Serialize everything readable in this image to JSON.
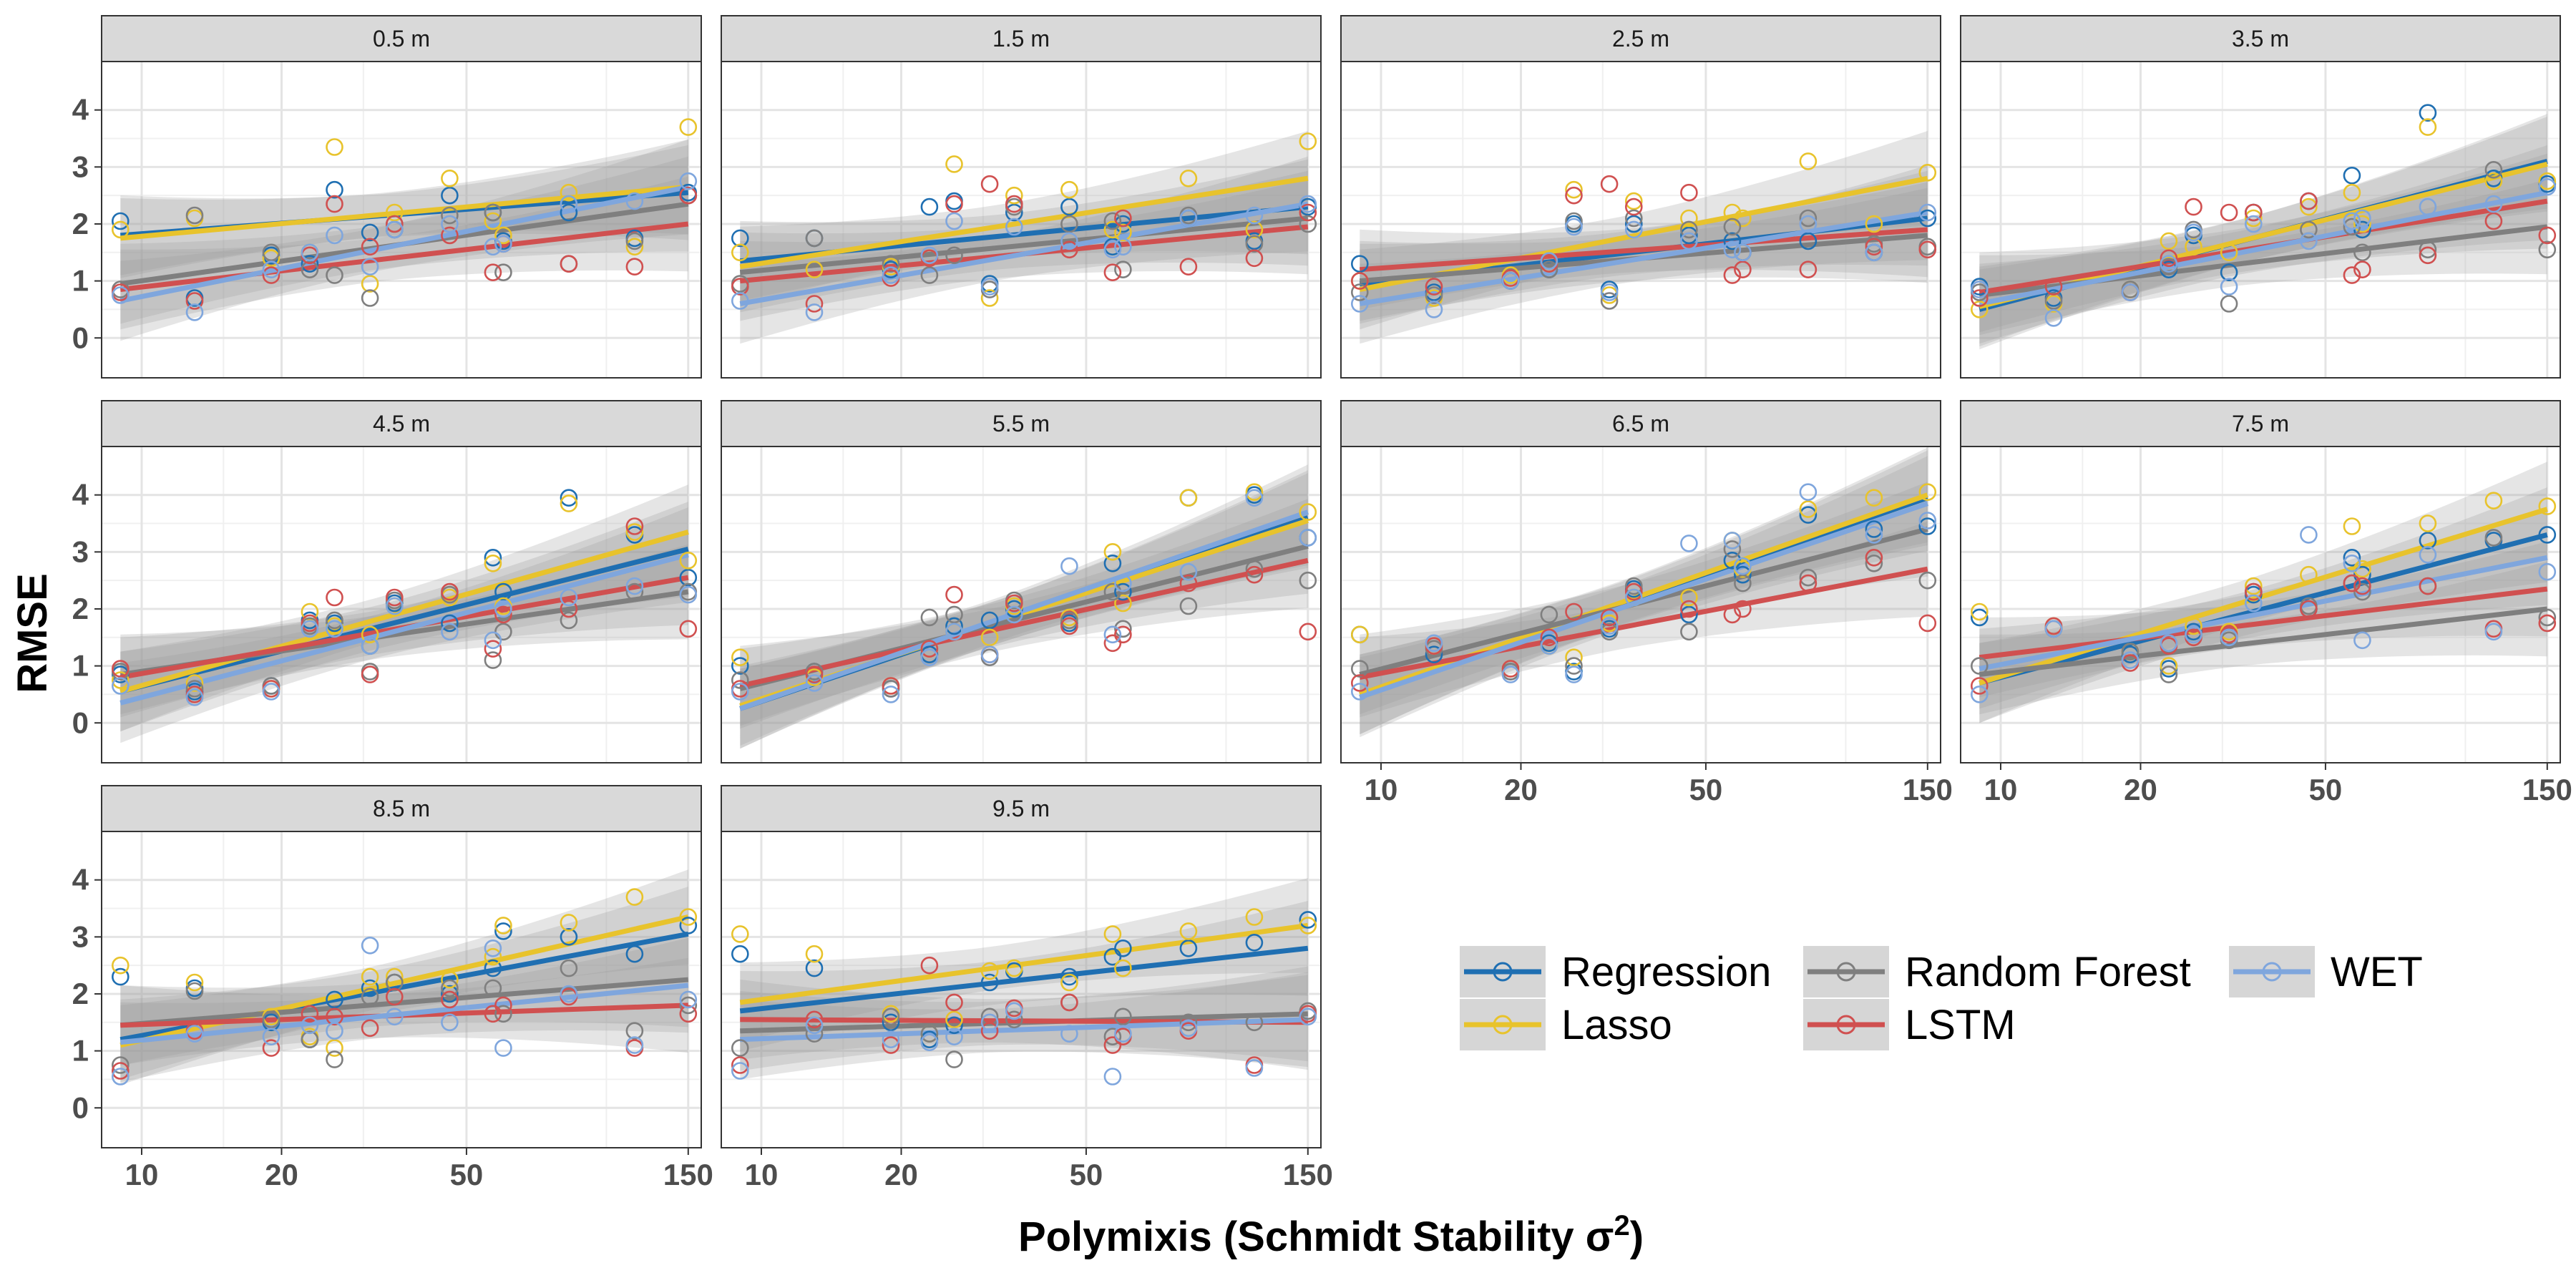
{
  "chart_data": {
    "type": "scatter",
    "title": "",
    "xlabel_prefix": "Polymixis (Schmidt Stability σ",
    "xlabel_sup": "2",
    "xlabel_suffix": ")",
    "ylabel": "RMSE",
    "x_scale": "log",
    "xlim": [
      8.2,
      160
    ],
    "ylim": [
      -0.7,
      4.85
    ],
    "x_ticks": [
      10,
      20,
      50,
      150
    ],
    "y_ticks": [
      0,
      1,
      2,
      3,
      4
    ],
    "grid": true,
    "legend_position": "bottom-right",
    "lake_x": [
      9,
      13,
      19,
      23,
      26,
      31,
      35,
      46,
      57,
      60,
      83,
      115,
      150
    ],
    "series": [
      {
        "name": "Regression",
        "color": "#1f6fb2"
      },
      {
        "name": "Lasso",
        "color": "#e8c32c"
      },
      {
        "name": "Random Forest",
        "color": "#7f7f7f"
      },
      {
        "name": "LSTM",
        "color": "#d05050"
      },
      {
        "name": "WET",
        "color": "#7fa6dd"
      }
    ],
    "panels": [
      {
        "label": "0.5 m",
        "fits": {
          "Regression": [
            1.8,
            2.55
          ],
          "Lasso": [
            1.75,
            2.65
          ],
          "Random Forest": [
            0.95,
            2.35
          ],
          "LSTM": [
            0.85,
            2.0
          ],
          "WET": [
            0.65,
            2.65
          ]
        },
        "points": {
          "Regression": [
            2.05,
            0.7,
            1.45,
            1.3,
            2.6,
            1.85,
            1.9,
            2.5,
            2.2,
            1.7,
            2.2,
            1.75,
            2.55
          ],
          "Lasso": [
            1.9,
            2.1,
            1.4,
            1.5,
            3.35,
            0.95,
            2.2,
            2.8,
            2.05,
            1.8,
            2.55,
            1.6,
            3.7
          ],
          "Random Forest": [
            0.85,
            2.15,
            1.5,
            1.2,
            1.1,
            0.7,
            2.0,
            2.15,
            2.2,
            1.15,
            1.3,
            1.7,
            2.5
          ],
          "LSTM": [
            0.8,
            0.65,
            1.1,
            1.45,
            2.35,
            1.6,
            2.0,
            1.8,
            1.15,
            1.65,
            1.3,
            1.25,
            2.5
          ],
          "WET": [
            0.75,
            0.45,
            1.2,
            1.5,
            1.8,
            1.25,
            1.9,
            2.0,
            1.6,
            1.65,
            2.35,
            2.4,
            2.75
          ]
        }
      },
      {
        "label": "1.5 m",
        "fits": {
          "Regression": [
            1.35,
            2.3
          ],
          "Lasso": [
            1.25,
            2.8
          ],
          "Random Forest": [
            1.15,
            2.1
          ],
          "LSTM": [
            1.0,
            1.95
          ],
          "WET": [
            0.6,
            2.35
          ]
        },
        "points": {
          "Regression": [
            1.75,
            1.75,
            1.2,
            2.3,
            2.4,
            0.95,
            2.2,
            2.3,
            1.6,
            2.0,
            2.1,
            1.7,
            2.3
          ],
          "Lasso": [
            1.5,
            1.2,
            1.25,
            1.4,
            3.05,
            0.7,
            2.5,
            2.6,
            1.9,
            1.85,
            2.8,
            1.9,
            3.45
          ],
          "Random Forest": [
            0.95,
            1.75,
            1.3,
            1.1,
            1.45,
            0.85,
            2.3,
            2.0,
            2.05,
            1.2,
            2.15,
            1.65,
            2.0
          ],
          "LSTM": [
            0.9,
            0.6,
            1.05,
            1.4,
            2.35,
            2.7,
            2.35,
            1.55,
            1.15,
            2.1,
            1.25,
            1.4,
            2.2
          ],
          "WET": [
            0.65,
            0.45,
            1.1,
            1.45,
            2.05,
            0.9,
            1.95,
            1.7,
            1.55,
            1.6,
            2.1,
            2.15,
            2.35
          ]
        }
      },
      {
        "label": "2.5 m",
        "fits": {
          "Regression": [
            0.95,
            2.1
          ],
          "Lasso": [
            0.85,
            2.8
          ],
          "Random Forest": [
            1.0,
            1.8
          ],
          "LSTM": [
            1.2,
            1.9
          ],
          "WET": [
            0.6,
            2.2
          ]
        },
        "points": {
          "Regression": [
            1.3,
            0.8,
            1.0,
            1.2,
            2.0,
            0.85,
            2.0,
            1.8,
            1.7,
            1.5,
            1.7,
            1.5,
            2.1
          ],
          "Lasso": [
            1.0,
            0.7,
            1.1,
            1.3,
            2.6,
            0.75,
            2.4,
            2.1,
            2.2,
            2.1,
            3.1,
            2.0,
            2.9
          ],
          "Random Forest": [
            0.8,
            0.75,
            1.0,
            1.2,
            2.05,
            0.65,
            2.1,
            1.9,
            1.95,
            1.5,
            2.1,
            1.65,
            1.6
          ],
          "LSTM": [
            1.0,
            0.9,
            1.05,
            1.3,
            2.5,
            2.7,
            2.3,
            2.55,
            1.1,
            1.2,
            1.2,
            1.6,
            1.55
          ],
          "WET": [
            0.6,
            0.5,
            1.0,
            1.35,
            1.95,
            0.8,
            1.9,
            1.7,
            1.55,
            1.5,
            2.0,
            1.5,
            2.2
          ]
        }
      },
      {
        "label": "3.5 m",
        "fits": {
          "Regression": [
            0.5,
            3.1
          ],
          "Lasso": [
            0.55,
            3.05
          ],
          "Random Forest": [
            0.75,
            1.95
          ],
          "LSTM": [
            0.8,
            2.4
          ],
          "WET": [
            0.6,
            2.55
          ]
        },
        "points": {
          "Regression": [
            0.9,
            0.7,
            0.8,
            1.2,
            1.8,
            1.15,
            2.2,
            2.4,
            2.85,
            1.9,
            3.95,
            2.8,
            2.7
          ],
          "Lasso": [
            0.5,
            0.6,
            0.85,
            1.7,
            1.6,
            1.5,
            2.1,
            2.3,
            2.55,
            2.0,
            3.7,
            2.75,
            2.75
          ],
          "Random Forest": [
            0.8,
            0.65,
            0.85,
            1.25,
            1.9,
            0.6,
            2.2,
            1.9,
            1.95,
            1.5,
            1.55,
            2.95,
            1.55
          ],
          "LSTM": [
            0.7,
            0.9,
            0.8,
            1.4,
            2.3,
            2.2,
            2.2,
            2.4,
            1.1,
            1.2,
            1.45,
            2.05,
            1.8
          ],
          "WET": [
            0.85,
            0.35,
            0.8,
            1.3,
            1.85,
            0.9,
            2.0,
            1.7,
            2.05,
            2.1,
            2.3,
            2.35,
            2.65
          ]
        }
      },
      {
        "label": "4.5 m",
        "fits": {
          "Regression": [
            0.55,
            3.05
          ],
          "Lasso": [
            0.55,
            3.35
          ],
          "Random Forest": [
            0.85,
            2.3
          ],
          "LSTM": [
            0.8,
            2.55
          ],
          "WET": [
            0.35,
            2.95
          ]
        },
        "points": {
          "Regression": [
            0.85,
            0.55,
            0.65,
            1.8,
            1.75,
            1.35,
            2.1,
            1.75,
            2.9,
            2.3,
            3.95,
            3.3,
            2.55
          ],
          "Lasso": [
            0.75,
            0.7,
            0.6,
            1.95,
            1.7,
            1.55,
            2.05,
            2.2,
            2.8,
            2.05,
            3.85,
            3.35,
            2.85
          ],
          "Random Forest": [
            0.9,
            0.6,
            0.65,
            1.7,
            1.8,
            0.9,
            2.15,
            2.25,
            1.1,
            1.6,
            1.8,
            2.3,
            2.3
          ],
          "LSTM": [
            0.95,
            0.5,
            0.6,
            1.75,
            2.2,
            0.85,
            2.2,
            2.3,
            1.3,
            1.9,
            2.0,
            3.45,
            1.65
          ],
          "WET": [
            0.65,
            0.45,
            0.55,
            1.65,
            1.65,
            1.35,
            2.05,
            1.6,
            1.45,
            2.0,
            2.2,
            2.4,
            2.25
          ]
        }
      },
      {
        "label": "5.5 m",
        "fits": {
          "Regression": [
            0.25,
            3.6
          ],
          "Lasso": [
            0.3,
            3.55
          ],
          "Random Forest": [
            0.6,
            3.1
          ],
          "LSTM": [
            0.65,
            2.85
          ],
          "WET": [
            0.25,
            3.7
          ]
        },
        "points": {
          "Regression": [
            1.0,
            0.9,
            0.6,
            1.2,
            1.7,
            1.8,
            2.0,
            1.75,
            2.8,
            2.3,
            3.95,
            4.0,
            3.25
          ],
          "Lasso": [
            1.15,
            0.8,
            0.65,
            1.3,
            1.6,
            1.5,
            2.05,
            1.85,
            3.0,
            2.1,
            3.95,
            4.05,
            3.7
          ],
          "Random Forest": [
            0.75,
            0.9,
            0.6,
            1.85,
            1.9,
            1.15,
            2.15,
            1.8,
            2.3,
            1.65,
            2.05,
            2.7,
            2.5
          ],
          "LSTM": [
            0.6,
            0.85,
            0.65,
            1.3,
            2.25,
            1.2,
            2.1,
            1.7,
            1.4,
            1.55,
            2.45,
            2.6,
            1.6
          ],
          "WET": [
            0.55,
            0.7,
            0.5,
            1.15,
            1.6,
            1.2,
            1.9,
            2.75,
            1.55,
            2.45,
            2.65,
            3.95,
            3.25
          ]
        }
      },
      {
        "label": "6.5 m",
        "fits": {
          "Regression": [
            0.5,
            3.95
          ],
          "Lasso": [
            0.5,
            4.0
          ],
          "Random Forest": [
            0.85,
            3.4
          ],
          "LSTM": [
            0.8,
            2.7
          ],
          "WET": [
            0.45,
            3.85
          ]
        },
        "points": {
          "Regression": [
            1.55,
            1.2,
            0.9,
            1.4,
            0.9,
            1.65,
            2.35,
            1.9,
            2.85,
            2.6,
            3.65,
            3.4,
            3.45
          ],
          "Lasso": [
            1.55,
            1.35,
            0.95,
            1.35,
            1.15,
            1.75,
            2.2,
            2.2,
            3.2,
            2.7,
            3.75,
            3.95,
            4.05
          ],
          "Random Forest": [
            0.95,
            1.3,
            0.9,
            1.9,
            1.0,
            1.6,
            2.4,
            1.6,
            3.05,
            2.45,
            2.55,
            2.8,
            2.5
          ],
          "LSTM": [
            0.7,
            1.35,
            0.95,
            1.5,
            1.95,
            1.85,
            2.3,
            2.0,
            1.9,
            2.0,
            2.45,
            2.9,
            1.75
          ],
          "WET": [
            0.55,
            1.4,
            0.85,
            1.35,
            0.85,
            1.7,
            2.2,
            3.15,
            3.2,
            2.75,
            4.05,
            3.3,
            3.55
          ]
        }
      },
      {
        "label": "7.5 m",
        "fits": {
          "Regression": [
            0.7,
            3.3
          ],
          "Lasso": [
            0.7,
            3.75
          ],
          "Random Forest": [
            0.85,
            2.0
          ],
          "LSTM": [
            1.15,
            2.35
          ],
          "WET": [
            0.95,
            2.9
          ]
        },
        "points": {
          "Regression": [
            1.85,
            1.65,
            1.2,
            0.95,
            1.6,
            1.5,
            2.25,
            2.0,
            2.9,
            2.6,
            3.2,
            3.2,
            3.3
          ],
          "Lasso": [
            1.95,
            1.7,
            1.25,
            1.0,
            1.7,
            1.6,
            2.4,
            2.6,
            3.45,
            2.7,
            3.5,
            3.9,
            3.8
          ],
          "Random Forest": [
            1.0,
            1.65,
            1.25,
            0.85,
            1.55,
            1.45,
            2.3,
            2.05,
            2.45,
            2.3,
            2.4,
            3.25,
            1.85
          ],
          "LSTM": [
            0.65,
            1.7,
            1.05,
            1.35,
            1.5,
            1.55,
            2.3,
            2.0,
            2.45,
            2.4,
            2.4,
            1.65,
            1.75
          ],
          "WET": [
            0.5,
            1.65,
            1.1,
            1.4,
            1.55,
            1.5,
            2.1,
            3.3,
            2.8,
            1.45,
            2.95,
            1.6,
            2.65
          ]
        }
      },
      {
        "label": "8.5 m",
        "fits": {
          "Regression": [
            1.2,
            3.05
          ],
          "Lasso": [
            1.1,
            3.35
          ],
          "Random Forest": [
            1.45,
            2.25
          ],
          "LSTM": [
            1.45,
            1.8
          ],
          "WET": [
            1.15,
            2.15
          ]
        },
        "points": {
          "Regression": [
            2.3,
            2.1,
            1.5,
            1.2,
            1.9,
            2.1,
            2.2,
            2.0,
            2.45,
            3.1,
            3.0,
            2.7,
            3.2
          ],
          "Lasso": [
            2.5,
            2.2,
            1.6,
            1.25,
            1.05,
            2.3,
            2.3,
            2.25,
            2.65,
            3.2,
            3.25,
            3.7,
            3.35
          ],
          "Random Forest": [
            0.75,
            2.05,
            1.55,
            1.2,
            0.85,
            1.95,
            2.2,
            2.1,
            2.1,
            1.65,
            2.45,
            1.35,
            1.8
          ],
          "LSTM": [
            0.65,
            1.35,
            1.05,
            1.65,
            1.6,
            1.4,
            1.95,
            1.9,
            1.65,
            1.8,
            1.95,
            1.05,
            1.65
          ],
          "WET": [
            0.55,
            1.3,
            1.25,
            1.45,
            1.35,
            2.85,
            1.6,
            1.5,
            2.8,
            1.05,
            2.0,
            1.1,
            1.9
          ]
        }
      },
      {
        "label": "9.5 m",
        "fits": {
          "Regression": [
            1.7,
            2.8
          ],
          "Lasso": [
            1.85,
            3.2
          ],
          "Random Forest": [
            1.35,
            1.65
          ],
          "LSTM": [
            1.55,
            1.5
          ],
          "WET": [
            1.2,
            1.55
          ]
        },
        "points": {
          "Regression": [
            2.7,
            2.45,
            1.5,
            1.2,
            1.45,
            2.2,
            2.4,
            2.3,
            2.65,
            2.8,
            2.8,
            2.9,
            3.3
          ],
          "Lasso": [
            3.05,
            2.7,
            1.65,
            1.3,
            1.55,
            2.4,
            2.45,
            2.2,
            3.05,
            2.45,
            3.1,
            3.35,
            3.2
          ],
          "Random Forest": [
            1.05,
            1.3,
            1.6,
            1.3,
            0.85,
            1.6,
            1.55,
            1.85,
            1.25,
            1.6,
            1.5,
            1.5,
            1.7
          ],
          "LSTM": [
            0.75,
            1.55,
            1.1,
            2.5,
            1.85,
            1.35,
            1.75,
            1.85,
            1.1,
            1.25,
            1.35,
            0.75,
            1.65
          ],
          "WET": [
            0.65,
            1.45,
            1.2,
            1.15,
            1.25,
            1.5,
            1.7,
            1.3,
            0.55,
            1.3,
            1.4,
            0.7,
            1.6
          ]
        }
      }
    ]
  }
}
